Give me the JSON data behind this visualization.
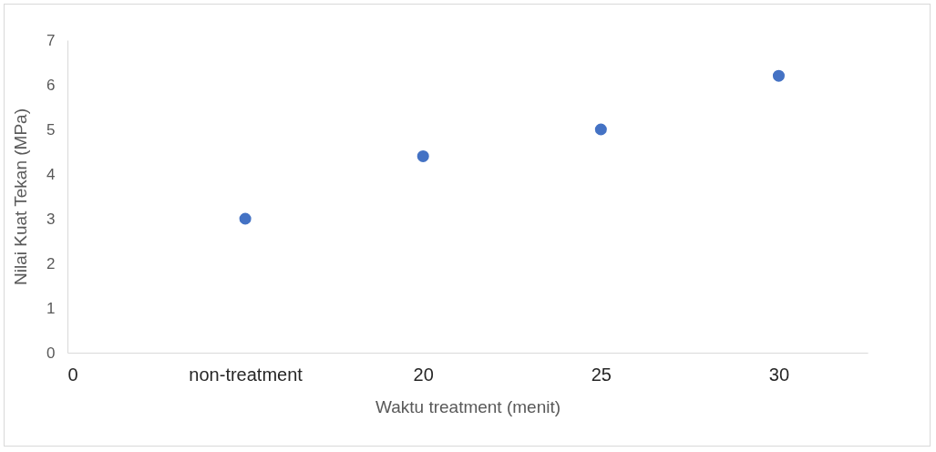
{
  "chart_data": {
    "type": "scatter",
    "xlabel": "Waktu treatment (menit)",
    "ylabel": "Nilai Kuat Tekan (MPa)",
    "categories": [
      "0",
      "non-treatment",
      "20",
      "25",
      "30"
    ],
    "series": [
      {
        "color": "#4472c4",
        "values": [
          null,
          3.0,
          4.4,
          5.0,
          6.2
        ]
      }
    ],
    "ylim": [
      0,
      7
    ],
    "yticks": [
      0,
      1,
      2,
      3,
      4,
      5,
      6,
      7
    ],
    "marker": "circle"
  }
}
